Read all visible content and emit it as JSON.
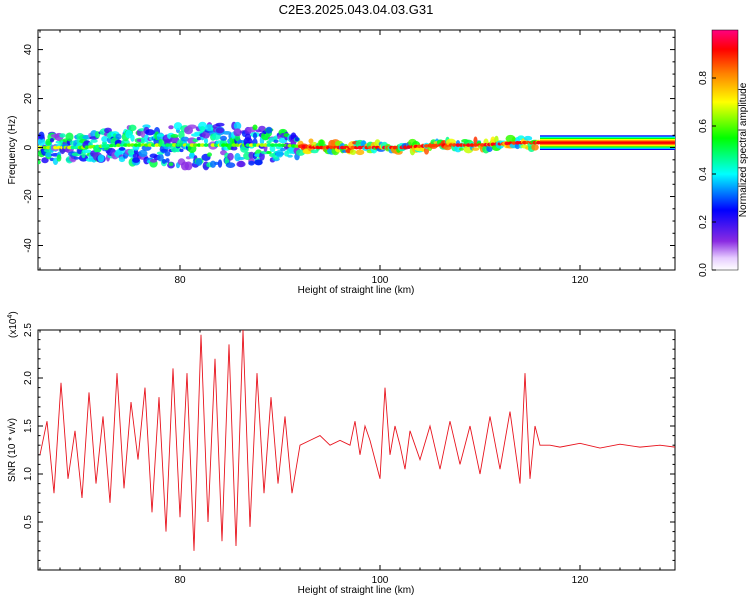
{
  "title": "C2E3.2025.043.04.03.G31",
  "colors": {
    "snr_line": "#e8141e",
    "ridge_low": "#00ffff",
    "ridge_high": "#ff0000",
    "background": "#ffffff",
    "axis": "#000000"
  },
  "chart_data": [
    {
      "type": "heatmap",
      "title": "C2E3.2025.043.04.03.G31",
      "xlabel": "Height of straight line (km)",
      "ylabel": "Frequency (Hz)",
      "xlim": [
        65.8,
        129.5
      ],
      "ylim": [
        -50,
        48
      ],
      "xticks": [
        80,
        100,
        120
      ],
      "yticks": [
        -40,
        -20,
        0,
        20,
        40
      ],
      "colorbar": {
        "label": "Normalized spectral amplitude",
        "range": [
          0,
          1
        ],
        "ticks": [
          "0.0",
          "0.2",
          "0.4",
          "0.6",
          "0.8"
        ],
        "tick_values": [
          0.0,
          0.2,
          0.4,
          0.6,
          0.8
        ],
        "colormap": "rainbow (white/violet → blue → cyan → green → yellow → red → magenta)"
      },
      "ridge": {
        "description_x": [
          66,
          70,
          74,
          78,
          82,
          86,
          90,
          94,
          98,
          102,
          106,
          110,
          114,
          116,
          120,
          129.5
        ],
        "center_frequency": [
          0,
          0,
          1,
          1,
          1,
          1,
          1,
          0,
          0,
          0,
          1,
          1,
          2,
          2,
          2,
          2
        ],
        "band_halfwidth": [
          6,
          5,
          7,
          8,
          9,
          8,
          6,
          2,
          2,
          2,
          2,
          2,
          2,
          3,
          3,
          3
        ],
        "max_amplitude_from_x": 92
      }
    },
    {
      "type": "line",
      "xlabel": "Height of straight line (km)",
      "ylabel": "SNR (10 * v/v)",
      "y_exponent": "(x10",
      "y_exponent_power": "4",
      "y_exponent_close": ")",
      "xlim": [
        65.8,
        129.5
      ],
      "ylim": [
        0.0,
        2.5
      ],
      "xticks": [
        80,
        100,
        120
      ],
      "yticks": [
        0.5,
        1.0,
        1.5,
        2.0,
        2.5
      ],
      "ytick_labels": [
        "0.5",
        "1.0",
        "1.5",
        "2.0",
        "2.5"
      ],
      "series": [
        {
          "x": [
            66,
            66.7,
            67.4,
            68.1,
            68.8,
            69.5,
            70.2,
            70.9,
            71.6,
            72.3,
            73,
            73.7,
            74.4,
            75.1,
            75.8,
            76.5,
            77.2,
            77.9,
            78.6,
            79.3,
            80,
            80.7,
            81.4,
            82.1,
            82.8,
            83.5,
            84.2,
            84.9,
            85.6,
            86.3,
            87,
            87.7,
            88.4,
            89.1,
            89.8,
            90.5,
            91.2,
            92,
            93,
            94,
            95,
            96,
            97,
            97.5,
            98,
            98.5,
            99,
            99.5,
            100,
            100.5,
            101,
            101.5,
            102,
            102.5,
            103,
            104,
            105,
            106,
            107,
            108,
            109,
            110,
            111,
            112,
            113,
            114,
            114.5,
            115,
            115.5,
            116,
            117,
            118,
            120,
            122,
            124,
            126,
            128,
            129.5
          ],
          "y": [
            1.2,
            1.55,
            0.8,
            1.95,
            0.95,
            1.45,
            0.75,
            1.85,
            0.9,
            1.6,
            0.7,
            2.05,
            0.85,
            1.75,
            1.15,
            1.9,
            0.6,
            1.8,
            0.4,
            2.1,
            0.55,
            2.05,
            0.2,
            2.45,
            0.5,
            2.2,
            0.3,
            2.35,
            0.25,
            2.5,
            0.45,
            2.05,
            0.8,
            1.8,
            0.9,
            1.6,
            0.8,
            1.3,
            1.35,
            1.4,
            1.3,
            1.35,
            1.3,
            1.55,
            1.2,
            1.5,
            1.35,
            1.15,
            0.95,
            1.9,
            1.2,
            1.5,
            1.3,
            1.05,
            1.45,
            1.15,
            1.5,
            1.05,
            1.55,
            1.1,
            1.5,
            1.0,
            1.6,
            1.05,
            1.65,
            0.9,
            2.05,
            0.95,
            1.5,
            1.3,
            1.3,
            1.28,
            1.32,
            1.27,
            1.31,
            1.28,
            1.3,
            1.28
          ]
        }
      ]
    }
  ]
}
